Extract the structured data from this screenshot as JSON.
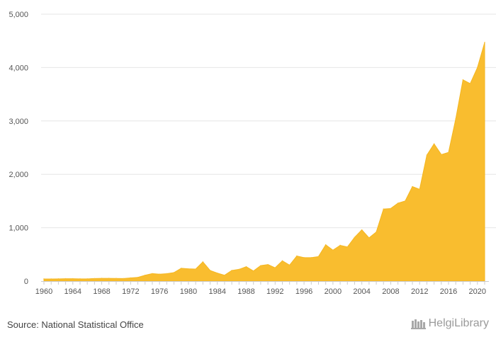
{
  "chart_data": {
    "type": "area",
    "x": [
      1960,
      1961,
      1962,
      1963,
      1964,
      1965,
      1966,
      1967,
      1968,
      1969,
      1970,
      1971,
      1972,
      1973,
      1974,
      1975,
      1976,
      1977,
      1978,
      1979,
      1980,
      1981,
      1982,
      1983,
      1984,
      1985,
      1986,
      1987,
      1988,
      1989,
      1990,
      1991,
      1992,
      1993,
      1994,
      1995,
      1996,
      1997,
      1998,
      1999,
      2000,
      2001,
      2002,
      2003,
      2004,
      2005,
      2006,
      2007,
      2008,
      2009,
      2010,
      2011,
      2012,
      2013,
      2014,
      2015,
      2016,
      2017,
      2018,
      2019,
      2020,
      2021
    ],
    "values": [
      40,
      40,
      42,
      45,
      45,
      42,
      42,
      48,
      52,
      52,
      50,
      48,
      60,
      70,
      110,
      140,
      130,
      140,
      160,
      240,
      230,
      225,
      360,
      200,
      150,
      110,
      200,
      220,
      270,
      190,
      290,
      310,
      250,
      380,
      300,
      470,
      440,
      440,
      460,
      680,
      580,
      670,
      640,
      820,
      960,
      810,
      920,
      1350,
      1360,
      1460,
      1500,
      1770,
      1720,
      2360,
      2570,
      2370,
      2410,
      3040,
      3770,
      3700,
      4000,
      4470
    ],
    "ylim": [
      0,
      5000
    ],
    "yticks": [
      0,
      1000,
      2000,
      3000,
      4000,
      5000
    ],
    "ytick_labels": [
      "0",
      "1,000",
      "2,000",
      "3,000",
      "4,000",
      "5,000"
    ],
    "xticks": [
      1960,
      1964,
      1968,
      1972,
      1976,
      1980,
      1984,
      1988,
      1992,
      1996,
      2000,
      2004,
      2008,
      2012,
      2016,
      2020
    ],
    "xtick_labels": [
      "1960",
      "1964",
      "1968",
      "1972",
      "1976",
      "1980",
      "1984",
      "1988",
      "1992",
      "1996",
      "2000",
      "2004",
      "2008",
      "2012",
      "2016",
      "2020"
    ],
    "fill_color": "#f9bd2f",
    "grid": true,
    "legend": false
  },
  "footer": {
    "source": "Source: National Statistical Office",
    "logo_text": "HelgiLibrary"
  },
  "colors": {
    "grid": "#e6e6e6",
    "axis": "#cccccc"
  }
}
